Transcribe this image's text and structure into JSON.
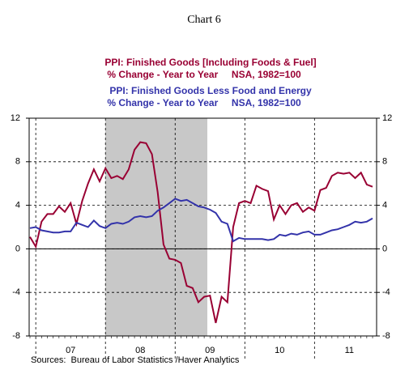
{
  "chart_data": {
    "type": "line",
    "title": "Chart 6",
    "source": "Sources:  Bureau of Labor Statistics /Haver Analytics",
    "categories": [
      null,
      null,
      null,
      null,
      null,
      null,
      null,
      "07",
      null,
      null,
      null,
      null,
      null,
      null,
      null,
      null,
      null,
      null,
      null,
      "08",
      null,
      null,
      null,
      null,
      null,
      null,
      null,
      null,
      null,
      null,
      null,
      "09",
      null,
      null,
      null,
      null,
      null,
      null,
      null,
      null,
      null,
      null,
      null,
      "10",
      null,
      null,
      null,
      null,
      null,
      null,
      null,
      null,
      null,
      null,
      null,
      "11",
      null,
      null,
      null,
      null
    ],
    "series": [
      {
        "name": "PPI: Finished Goods [Including Foods & Fuel]",
        "note": "% Change - Year to Year     NSA, 1982=100",
        "color": "#990033",
        "values": [
          1.1,
          0.2,
          2.5,
          3.2,
          3.2,
          3.9,
          3.4,
          4.2,
          2.3,
          4.4,
          6.0,
          7.3,
          6.2,
          7.4,
          6.5,
          6.7,
          6.4,
          7.3,
          9.1,
          9.8,
          9.7,
          8.7,
          5.2,
          0.4,
          -0.9,
          -1.0,
          -1.3,
          -3.4,
          -3.6,
          -4.9,
          -4.4,
          -4.3,
          -6.8,
          -4.4,
          -4.9,
          2.0,
          4.2,
          4.4,
          4.2,
          5.8,
          5.5,
          5.3,
          2.7,
          4.0,
          3.2,
          4.0,
          4.2,
          3.4,
          3.8,
          3.5,
          5.4,
          5.6,
          6.7,
          7.0,
          6.9,
          7.0,
          6.5,
          7.0,
          5.9,
          5.7
        ]
      },
      {
        "name": "PPI: Finished Goods Less Food and Energy",
        "note": "% Change - Year to Year     NSA, 1982=100",
        "color": "#3333aa",
        "values": [
          1.9,
          2.0,
          1.7,
          1.6,
          1.5,
          1.5,
          1.6,
          1.6,
          2.4,
          2.2,
          2.0,
          2.6,
          2.1,
          1.9,
          2.3,
          2.4,
          2.3,
          2.5,
          2.9,
          3.0,
          2.9,
          3.0,
          3.5,
          3.8,
          4.2,
          4.6,
          4.4,
          4.5,
          4.2,
          3.9,
          3.8,
          3.6,
          3.3,
          2.5,
          2.3,
          0.7,
          1.0,
          0.9,
          0.9,
          0.9,
          0.9,
          0.8,
          0.9,
          1.3,
          1.2,
          1.4,
          1.3,
          1.5,
          1.6,
          1.3,
          1.3,
          1.5,
          1.7,
          1.8,
          2.0,
          2.2,
          2.5,
          2.4,
          2.5,
          2.8
        ]
      }
    ],
    "ylim": [
      -8,
      12
    ],
    "yticks": [
      -8,
      -4,
      0,
      4,
      8,
      12
    ],
    "grid": true
  }
}
